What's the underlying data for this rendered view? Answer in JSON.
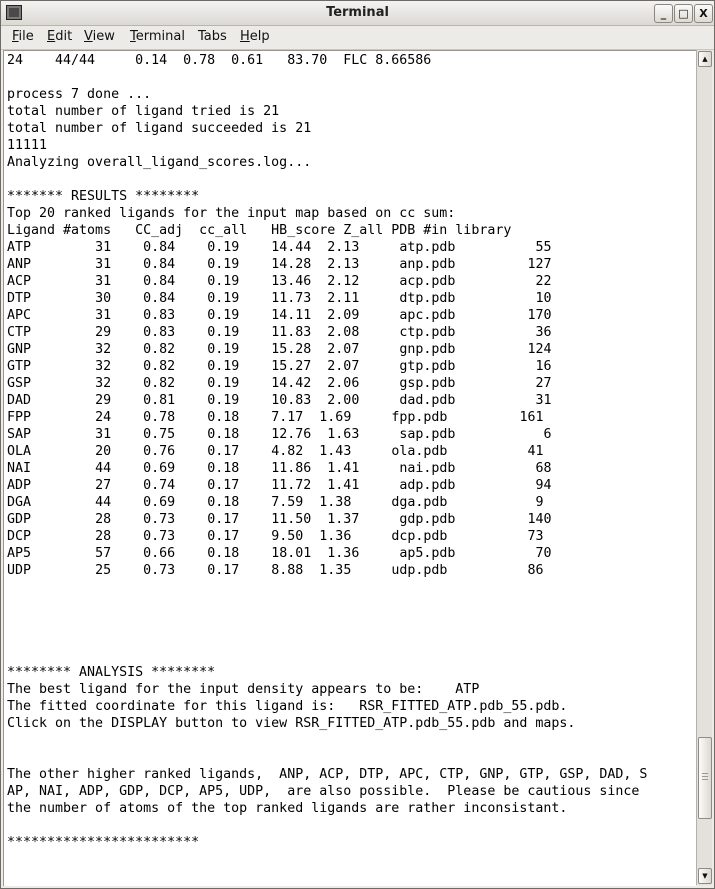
{
  "window": {
    "title": "Terminal",
    "buttons": {
      "minimize": "_",
      "maximize": "□",
      "close": "X"
    }
  },
  "menu": [
    {
      "label": "File",
      "mnemonic": "F"
    },
    {
      "label": "Edit",
      "mnemonic": "E"
    },
    {
      "label": "View",
      "mnemonic": "V"
    },
    {
      "label": "Terminal",
      "mnemonic": "T"
    },
    {
      "label": "Tabs",
      "mnemonic": "b"
    },
    {
      "label": "Help",
      "mnemonic": "H"
    }
  ],
  "terminal": {
    "pre_lines": [
      "24    44/44     0.14  0.78  0.61   83.70  FLC 8.66586",
      "",
      "process 7 done ...",
      "total number of ligand tried is 21",
      "total number of ligand succeeded is 21",
      "11111",
      "Analyzing overall_ligand_scores.log...",
      "",
      "******* RESULTS ********",
      "Top 20 ranked ligands for the input map based on cc sum:",
      "Ligand #atoms   CC_adj  cc_all   HB_score Z_all PDB #in library"
    ],
    "table_rows": [
      [
        "ATP",
        "31",
        "0.84",
        "0.19",
        "14.44",
        "2.13",
        "atp.pdb",
        "55"
      ],
      [
        "ANP",
        "31",
        "0.84",
        "0.19",
        "14.28",
        "2.13",
        "anp.pdb",
        "127"
      ],
      [
        "ACP",
        "31",
        "0.84",
        "0.19",
        "13.46",
        "2.12",
        "acp.pdb",
        "22"
      ],
      [
        "DTP",
        "30",
        "0.84",
        "0.19",
        "11.73",
        "2.11",
        "dtp.pdb",
        "10"
      ],
      [
        "APC",
        "31",
        "0.83",
        "0.19",
        "14.11",
        "2.09",
        "apc.pdb",
        "170"
      ],
      [
        "CTP",
        "29",
        "0.83",
        "0.19",
        "11.83",
        "2.08",
        "ctp.pdb",
        "36"
      ],
      [
        "GNP",
        "32",
        "0.82",
        "0.19",
        "15.28",
        "2.07",
        "gnp.pdb",
        "124"
      ],
      [
        "GTP",
        "32",
        "0.82",
        "0.19",
        "15.27",
        "2.07",
        "gtp.pdb",
        "16"
      ],
      [
        "GSP",
        "32",
        "0.82",
        "0.19",
        "14.42",
        "2.06",
        "gsp.pdb",
        "27"
      ],
      [
        "DAD",
        "29",
        "0.81",
        "0.19",
        "10.83",
        "2.00",
        "dad.pdb",
        "31"
      ],
      [
        "FPP",
        "24",
        "0.78",
        "0.18",
        "7.17",
        "1.69",
        "fpp.pdb",
        "161"
      ],
      [
        "SAP",
        "31",
        "0.75",
        "0.18",
        "12.76",
        "1.63",
        "sap.pdb",
        "6"
      ],
      [
        "OLA",
        "20",
        "0.76",
        "0.17",
        "4.82",
        "1.43",
        "ola.pdb",
        "41"
      ],
      [
        "NAI",
        "44",
        "0.69",
        "0.18",
        "11.86",
        "1.41",
        "nai.pdb",
        "68"
      ],
      [
        "ADP",
        "27",
        "0.74",
        "0.17",
        "11.72",
        "1.41",
        "adp.pdb",
        "94"
      ],
      [
        "DGA",
        "44",
        "0.69",
        "0.18",
        "7.59",
        "1.38",
        "dga.pdb",
        "9"
      ],
      [
        "GDP",
        "28",
        "0.73",
        "0.17",
        "11.50",
        "1.37",
        "gdp.pdb",
        "140"
      ],
      [
        "DCP",
        "28",
        "0.73",
        "0.17",
        "9.50",
        "1.36",
        "dcp.pdb",
        "73"
      ],
      [
        "AP5",
        "57",
        "0.66",
        "0.18",
        "18.01",
        "1.36",
        "ap5.pdb",
        "70"
      ],
      [
        "UDP",
        "25",
        "0.73",
        "0.17",
        "8.88",
        "1.35",
        "udp.pdb",
        "86"
      ]
    ],
    "post_lines": [
      "",
      "",
      "",
      "",
      "",
      "******** ANALYSIS ********",
      "The best ligand for the input density appears to be:    ATP",
      "The fitted coordinate for this ligand is:   RSR_FITTED_ATP.pdb_55.pdb.",
      "Click on the DISPLAY button to view RSR_FITTED_ATP.pdb_55.pdb and maps.",
      "",
      "",
      "The other higher ranked ligands,  ANP, ACP, DTP, APC, CTP, GNP, GTP, GSP, DAD, S",
      "AP, NAI, ADP, GDP, DCP, AP5, UDP,  are also possible.  Please be cautious since",
      "the number of atoms of the top ranked ligands are rather inconsistant.",
      "",
      "************************"
    ]
  },
  "scrollbar": {
    "position_fraction": 0.93
  }
}
